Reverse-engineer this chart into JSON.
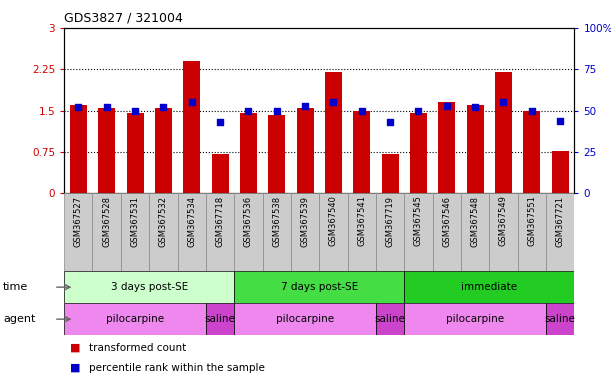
{
  "title": "GDS3827 / 321004",
  "samples": [
    "GSM367527",
    "GSM367528",
    "GSM367531",
    "GSM367532",
    "GSM367534",
    "GSM367718",
    "GSM367536",
    "GSM367538",
    "GSM367539",
    "GSM367540",
    "GSM367541",
    "GSM367719",
    "GSM367545",
    "GSM367546",
    "GSM367548",
    "GSM367549",
    "GSM367551",
    "GSM367721"
  ],
  "transformed_count": [
    1.6,
    1.55,
    1.45,
    1.55,
    2.4,
    0.72,
    1.45,
    1.42,
    1.55,
    2.2,
    1.5,
    0.72,
    1.45,
    1.65,
    1.6,
    2.2,
    1.5,
    0.77
  ],
  "percentile_rank": [
    52,
    52,
    50,
    52,
    55,
    43,
    50,
    50,
    53,
    55,
    50,
    43,
    50,
    53,
    52,
    55,
    50,
    44
  ],
  "ylim_left": [
    0,
    3
  ],
  "ylim_right": [
    0,
    100
  ],
  "yticks_left": [
    0,
    0.75,
    1.5,
    2.25,
    3
  ],
  "yticks_right": [
    0,
    25,
    50,
    75,
    100
  ],
  "ytick_labels_left": [
    "0",
    "0.75",
    "1.5",
    "2.25",
    "3"
  ],
  "ytick_labels_right": [
    "0",
    "25",
    "50",
    "75",
    "100%"
  ],
  "bar_color": "#cc0000",
  "dot_color": "#0000cc",
  "time_groups": [
    {
      "label": "3 days post-SE",
      "start": 0,
      "end": 5,
      "color": "#ccffcc"
    },
    {
      "label": "7 days post-SE",
      "start": 6,
      "end": 11,
      "color": "#44dd44"
    },
    {
      "label": "immediate",
      "start": 12,
      "end": 17,
      "color": "#22cc22"
    }
  ],
  "agent_groups": [
    {
      "label": "pilocarpine",
      "start": 0,
      "end": 4,
      "color": "#ee88ee"
    },
    {
      "label": "saline",
      "start": 5,
      "end": 5,
      "color": "#cc44cc"
    },
    {
      "label": "pilocarpine",
      "start": 6,
      "end": 10,
      "color": "#ee88ee"
    },
    {
      "label": "saline",
      "start": 11,
      "end": 11,
      "color": "#cc44cc"
    },
    {
      "label": "pilocarpine",
      "start": 12,
      "end": 16,
      "color": "#ee88ee"
    },
    {
      "label": "saline",
      "start": 17,
      "end": 17,
      "color": "#cc44cc"
    }
  ],
  "legend_items": [
    {
      "label": "transformed count",
      "color": "#cc0000"
    },
    {
      "label": "percentile rank within the sample",
      "color": "#0000cc"
    }
  ],
  "background_color": "#ffffff",
  "xticklabel_bg": "#cccccc"
}
